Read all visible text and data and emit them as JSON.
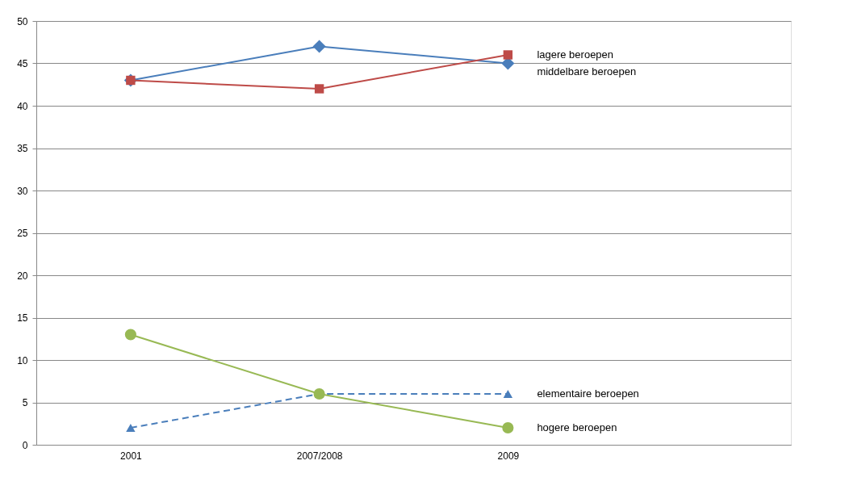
{
  "chart_data": {
    "type": "line",
    "categories": [
      "2001",
      "2007/2008",
      "2009",
      null
    ],
    "series": [
      {
        "name": "middelbare beroepen",
        "color": "#4a7ebb",
        "values": [
          43,
          47,
          45,
          null
        ],
        "marker": "diamond",
        "line_style": "solid"
      },
      {
        "name": "lagere beroepen",
        "color": "#be4b48",
        "values": [
          43,
          42,
          46,
          null
        ],
        "marker": "square",
        "line_style": "solid"
      },
      {
        "name": "elementaire beroepen",
        "color": "#4a7ebb",
        "values": [
          2,
          6,
          6,
          null
        ],
        "marker": "triangle",
        "line_style": "dashed"
      },
      {
        "name": "hogere beroepen",
        "color": "#98b954",
        "values": [
          13,
          6,
          2,
          null
        ],
        "marker": "circle",
        "line_style": "solid"
      }
    ],
    "ylim": [
      0,
      50
    ],
    "yticks": [
      0,
      5,
      10,
      15,
      20,
      25,
      30,
      35,
      40,
      45,
      50
    ],
    "grid": "y"
  }
}
